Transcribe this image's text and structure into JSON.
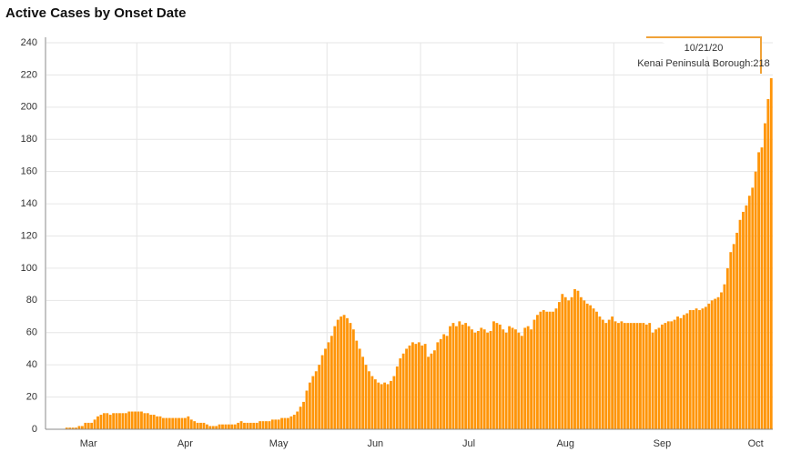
{
  "chart_data": {
    "type": "bar",
    "title": "Active Cases by Onset Date",
    "categories": [
      null,
      null,
      null,
      null,
      null,
      null,
      null,
      null,
      null,
      null,
      null,
      null,
      null,
      "Mar",
      null,
      null,
      null,
      null,
      null,
      null,
      null,
      null,
      null,
      null,
      null,
      null,
      null,
      null,
      null,
      null,
      null,
      null,
      null,
      null,
      null,
      null,
      null,
      null,
      null,
      null,
      null,
      null,
      null,
      null,
      "Apr",
      null,
      null,
      null,
      null,
      null,
      null,
      null,
      null,
      null,
      null,
      null,
      null,
      null,
      null,
      null,
      null,
      null,
      null,
      null,
      null,
      null,
      null,
      null,
      null,
      null,
      null,
      null,
      null,
      null,
      "May",
      null,
      null,
      null,
      null,
      null,
      null,
      null,
      null,
      null,
      null,
      null,
      null,
      null,
      null,
      null,
      null,
      null,
      null,
      null,
      null,
      null,
      null,
      null,
      null,
      null,
      null,
      null,
      null,
      null,
      null,
      "Jun",
      null,
      null,
      null,
      null,
      null,
      null,
      null,
      null,
      null,
      null,
      null,
      null,
      null,
      null,
      null,
      null,
      null,
      null,
      null,
      null,
      null,
      null,
      null,
      null,
      null,
      null,
      null,
      null,
      null,
      "Jul",
      null,
      null,
      null,
      null,
      null,
      null,
      null,
      null,
      null,
      null,
      null,
      null,
      null,
      null,
      null,
      null,
      null,
      null,
      null,
      null,
      null,
      null,
      null,
      null,
      null,
      null,
      null,
      null,
      null,
      null,
      "Aug",
      null,
      null,
      null,
      null,
      null,
      null,
      null,
      null,
      null,
      null,
      null,
      null,
      null,
      null,
      null,
      null,
      null,
      null,
      null,
      null,
      null,
      null,
      null,
      null,
      null,
      null,
      null,
      null,
      null,
      null,
      "Sep",
      null,
      null,
      null,
      null,
      null,
      null,
      null,
      null,
      null,
      null,
      null,
      null,
      null,
      null,
      null,
      null,
      null,
      null,
      null,
      null,
      null,
      null,
      null,
      null,
      null,
      null,
      null,
      null,
      null,
      "Oct",
      null,
      null,
      null,
      null,
      null
    ],
    "series": [
      {
        "name": "Kenai Peninsula Borough",
        "color": "#ff9508",
        "values": [
          0,
          0,
          0,
          0,
          0,
          0,
          1,
          1,
          1,
          1,
          2,
          2,
          4,
          4,
          4,
          6,
          8,
          9,
          10,
          10,
          9,
          10,
          10,
          10,
          10,
          10,
          11,
          11,
          11,
          11,
          11,
          10,
          10,
          9,
          9,
          8,
          8,
          7,
          7,
          7,
          7,
          7,
          7,
          7,
          7,
          8,
          6,
          5,
          4,
          4,
          4,
          3,
          2,
          2,
          2,
          3,
          3,
          3,
          3,
          3,
          3,
          4,
          5,
          4,
          4,
          4,
          4,
          4,
          5,
          5,
          5,
          5,
          6,
          6,
          6,
          7,
          7,
          7,
          8,
          9,
          11,
          14,
          17,
          24,
          29,
          33,
          36,
          40,
          46,
          50,
          54,
          58,
          64,
          68,
          70,
          71,
          69,
          66,
          62,
          55,
          50,
          45,
          40,
          36,
          33,
          31,
          29,
          28,
          29,
          28,
          30,
          33,
          39,
          44,
          47,
          50,
          52,
          54,
          53,
          54,
          52,
          53,
          45,
          47,
          49,
          54,
          56,
          59,
          58,
          64,
          66,
          64,
          67,
          65,
          66,
          64,
          62,
          60,
          61,
          63,
          62,
          60,
          61,
          67,
          66,
          65,
          62,
          60,
          64,
          63,
          62,
          60,
          58,
          63,
          64,
          62,
          68,
          71,
          73,
          74,
          73,
          73,
          73,
          75,
          79,
          84,
          82,
          80,
          82,
          87,
          86,
          82,
          80,
          78,
          77,
          75,
          73,
          70,
          68,
          66,
          68,
          70,
          67,
          66,
          67,
          66,
          66,
          66,
          66,
          66,
          66,
          66,
          65,
          66,
          60,
          62,
          63,
          65,
          66,
          67,
          67,
          68,
          70,
          69,
          71,
          72,
          74,
          74,
          75,
          74,
          75,
          76,
          78,
          80,
          81,
          82,
          85,
          90,
          100,
          110,
          115,
          122,
          130,
          135,
          139,
          145,
          150,
          160,
          172,
          175,
          190,
          205,
          218
        ]
      }
    ],
    "ylim": [
      0,
      240
    ],
    "yticks": [
      0,
      20,
      40,
      60,
      80,
      100,
      120,
      140,
      160,
      180,
      200,
      220,
      240
    ],
    "grid": true,
    "tooltip": {
      "date": "10/21/20",
      "label": "Kenai Peninsula Borough:218"
    }
  }
}
